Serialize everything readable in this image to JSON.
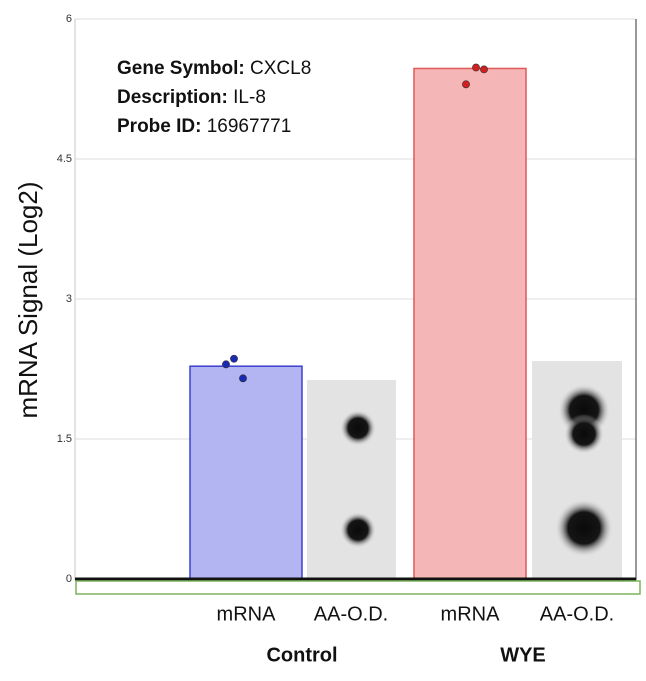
{
  "chart_data": {
    "type": "bar",
    "annotation": [
      {
        "label": "Gene Symbol:",
        "value": "CXCL8"
      },
      {
        "label": "Description:",
        "value": "IL-8"
      },
      {
        "label": "Probe ID:",
        "value": "16967771"
      }
    ],
    "y_label": "mRNA Signal (Log2)",
    "categories": [
      "mRNA",
      "AA-O.D.",
      "mRNA",
      "AA-O.D."
    ],
    "groups": [
      {
        "name": "Control",
        "value": 2.28,
        "points": [
          2.3,
          2.36,
          2.15
        ],
        "color": "#b3b5f3",
        "edge": "#3b40cf",
        "point_color": "#1b2ab5"
      },
      {
        "name": "WYE",
        "value": 5.47,
        "points": [
          5.3,
          5.48,
          5.46
        ],
        "color": "#f4b6b6",
        "edge": "#e05858",
        "point_color": "#d21f1f"
      }
    ],
    "ylim": [
      0,
      6
    ],
    "yticks": [
      0,
      1.5,
      3,
      4.5,
      6
    ],
    "grid": true
  }
}
